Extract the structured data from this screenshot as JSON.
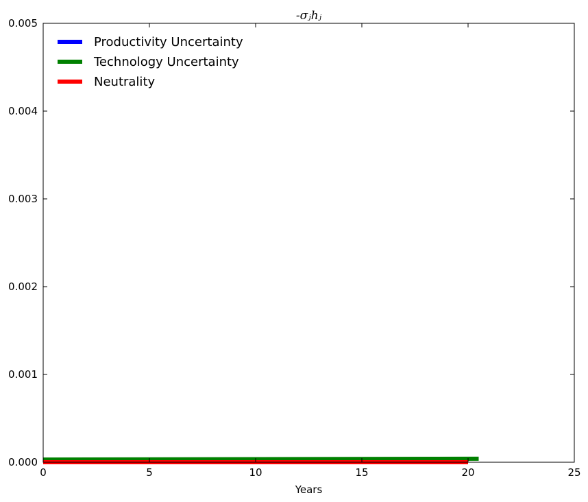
{
  "chart_data": {
    "type": "line",
    "title": "-σⱼhⱼ",
    "xlabel": "Years",
    "ylabel": "",
    "xlim": [
      0,
      25
    ],
    "ylim": [
      0,
      0.005
    ],
    "xticks": [
      0,
      5,
      10,
      15,
      20,
      25
    ],
    "xtick_labels": [
      "0",
      "5",
      "10",
      "15",
      "20",
      "25"
    ],
    "yticks": [
      0,
      0.001,
      0.002,
      0.003,
      0.004,
      0.005
    ],
    "ytick_labels": [
      "0.000",
      "0.001",
      "0.002",
      "0.003",
      "0.004",
      "0.005"
    ],
    "grid": false,
    "legend_position": "top-left",
    "series": [
      {
        "name": "Productivity Uncertainty",
        "color": "#0000ff",
        "x": [
          0,
          20
        ],
        "y": [
          0.0,
          0.0
        ]
      },
      {
        "name": "Technology Uncertainty",
        "color": "#008000",
        "x": [
          0,
          20.5
        ],
        "y": [
          3e-05,
          4e-05
        ]
      },
      {
        "name": "Neutrality",
        "color": "#ff0000",
        "x": [
          0,
          20
        ],
        "y": [
          0.0,
          0.0
        ]
      }
    ]
  }
}
